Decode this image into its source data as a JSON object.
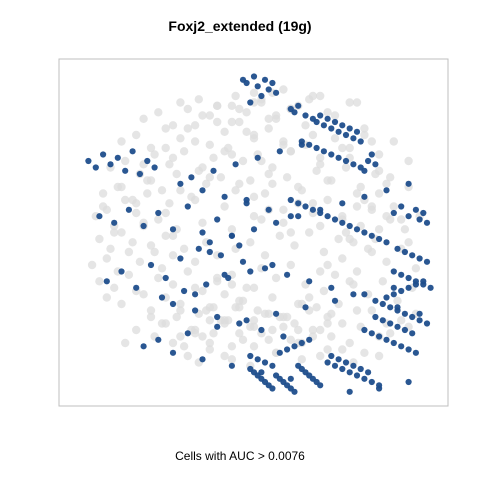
{
  "chart_data": {
    "type": "scatter",
    "title": "Foxj2_extended (19g)",
    "xlabel": "Cells with AUC > 0.0076",
    "ylabel": "",
    "xlim": [
      0,
      100
    ],
    "ylim": [
      0,
      100
    ],
    "grid": false,
    "legend": "none",
    "colors": {
      "background_cells": "#dcdcdc",
      "highlight_cells": "#1f4e8c"
    },
    "series": [
      {
        "role": "background",
        "x": [
          7,
          9,
          12,
          15,
          18,
          21,
          24,
          27,
          8,
          11,
          14,
          17,
          20,
          23,
          26,
          29,
          6,
          10,
          13,
          16,
          19,
          22,
          25,
          28,
          31,
          34,
          37,
          40,
          8,
          12,
          16,
          20,
          24,
          28,
          32,
          36,
          40,
          44,
          10,
          14,
          18,
          22,
          26,
          30,
          34,
          38,
          42,
          46,
          50,
          9,
          13,
          17,
          21,
          25,
          29,
          33,
          37,
          41,
          45,
          49,
          53,
          11,
          15,
          19,
          23,
          27,
          31,
          35,
          39,
          43,
          47,
          51,
          55,
          14,
          18,
          22,
          26,
          30,
          34,
          38,
          42,
          46,
          50,
          54,
          58,
          20,
          24,
          28,
          32,
          36,
          40,
          44,
          48,
          52,
          56,
          60,
          25,
          29,
          33,
          37,
          41,
          45,
          49,
          53,
          57,
          61,
          65,
          30,
          34,
          38,
          42,
          46,
          50,
          54,
          58,
          62,
          66,
          70,
          35,
          39,
          43,
          47,
          51,
          55,
          59,
          63,
          67,
          71,
          40,
          44,
          48,
          52,
          56,
          60,
          64,
          68,
          72,
          76,
          45,
          49,
          53,
          57,
          61,
          65,
          69,
          73,
          77,
          81,
          50,
          54,
          58,
          62,
          66,
          70,
          74,
          78,
          82,
          86,
          55,
          59,
          63,
          67,
          71,
          75,
          79,
          83,
          87,
          60,
          64,
          68,
          72,
          76,
          80,
          84,
          88,
          92,
          65,
          69,
          73,
          77,
          81,
          85,
          89,
          93,
          70,
          74,
          78,
          82,
          86,
          90,
          94,
          75,
          79,
          83,
          87,
          91,
          95,
          80,
          84,
          88,
          92,
          30,
          35,
          40,
          45,
          50,
          55,
          60,
          65,
          32,
          38,
          44,
          50,
          56,
          62,
          68,
          74,
          80,
          35,
          42,
          49,
          56,
          63,
          70,
          77,
          84,
          28,
          36,
          44,
          52,
          60,
          68,
          76,
          84,
          92,
          22,
          30,
          38,
          46,
          54,
          62,
          70,
          78,
          86,
          94,
          18,
          26,
          34,
          42,
          50,
          58,
          66,
          74,
          82,
          90,
          15,
          23,
          31,
          39,
          47,
          55,
          63,
          71,
          79,
          87,
          12,
          20,
          28,
          36,
          44,
          52,
          60,
          68,
          76,
          84,
          92,
          10,
          18,
          26,
          34,
          42,
          50,
          58,
          66,
          74,
          82,
          90,
          14,
          22,
          30,
          38,
          46,
          54,
          62,
          70,
          78,
          86,
          20,
          28,
          36,
          44,
          52,
          60,
          68,
          76,
          84,
          26,
          34,
          42,
          50,
          58,
          66,
          74,
          82,
          32,
          40,
          48,
          56,
          64,
          72,
          80,
          38,
          46,
          54,
          62,
          70,
          78,
          44,
          52,
          60,
          68,
          76,
          50,
          58,
          66
        ],
        "y": [
          55,
          58,
          52,
          60,
          56,
          62,
          54,
          59,
          48,
          45,
          50,
          47,
          53,
          44,
          49,
          51,
          40,
          42,
          38,
          44,
          41,
          46,
          39,
          43,
          45,
          41,
          47,
          43,
          35,
          33,
          37,
          31,
          36,
          34,
          38,
          32,
          36,
          34,
          30,
          28,
          32,
          26,
          30,
          28,
          33,
          27,
          31,
          29,
          33,
          62,
          64,
          60,
          66,
          63,
          68,
          61,
          65,
          67,
          63,
          66,
          62,
          70,
          72,
          68,
          74,
          71,
          75,
          69,
          73,
          76,
          72,
          74,
          70,
          78,
          80,
          76,
          82,
          79,
          83,
          77,
          81,
          84,
          80,
          82,
          78,
          85,
          87,
          83,
          88,
          86,
          89,
          84,
          87,
          90,
          86,
          88,
          22,
          24,
          20,
          26,
          23,
          27,
          21,
          25,
          24,
          22,
          26,
          18,
          20,
          16,
          22,
          19,
          23,
          17,
          21,
          20,
          18,
          22,
          25,
          27,
          23,
          29,
          26,
          30,
          24,
          28,
          27,
          25,
          35,
          37,
          33,
          39,
          36,
          40,
          34,
          38,
          37,
          35,
          45,
          47,
          43,
          49,
          46,
          50,
          44,
          48,
          47,
          45,
          55,
          57,
          53,
          59,
          56,
          60,
          54,
          58,
          57,
          55,
          65,
          67,
          63,
          69,
          66,
          70,
          64,
          68,
          67,
          75,
          77,
          73,
          79,
          76,
          80,
          74,
          78,
          72,
          30,
          32,
          28,
          34,
          31,
          35,
          29,
          33,
          40,
          42,
          38,
          44,
          41,
          45,
          39,
          50,
          52,
          48,
          54,
          51,
          55,
          60,
          62,
          58,
          64,
          90,
          91,
          89,
          92,
          90,
          93,
          88,
          91,
          12,
          14,
          11,
          15,
          13,
          16,
          12,
          14,
          13,
          10,
          12,
          9,
          13,
          11,
          14,
          10,
          12,
          16,
          18,
          15,
          19,
          17,
          20,
          16,
          18,
          21,
          24,
          26,
          23,
          27,
          25,
          28,
          24,
          26,
          22,
          25,
          20,
          22,
          19,
          23,
          21,
          24,
          20,
          22,
          26,
          23,
          16,
          18,
          15,
          19,
          17,
          20,
          16,
          18,
          21,
          19,
          50,
          52,
          49,
          53,
          51,
          54,
          50,
          52,
          48,
          51,
          47,
          57,
          59,
          56,
          60,
          58,
          61,
          57,
          59,
          55,
          58,
          54,
          64,
          66,
          63,
          67,
          65,
          68,
          64,
          66,
          62,
          65,
          71,
          73,
          70,
          74,
          72,
          75,
          71,
          73,
          69,
          76,
          78,
          75,
          79,
          77,
          80,
          76,
          78,
          82,
          84,
          81,
          85,
          83,
          86,
          82,
          86,
          88,
          85,
          89,
          87,
          90,
          89,
          91,
          88,
          92,
          90,
          93,
          94,
          92
        ]
      },
      {
        "role": "highlight",
        "name": "",
        "x": [
          47,
          48,
          50,
          51,
          53,
          54,
          55,
          56,
          52,
          49,
          60,
          61,
          62,
          64,
          66,
          67,
          68,
          69,
          70,
          71,
          72,
          73,
          74,
          75,
          76,
          77,
          78,
          79,
          63,
          65,
          67,
          69,
          71,
          73,
          75,
          77,
          79,
          80,
          81,
          82,
          83,
          60,
          62,
          64,
          66,
          68,
          70,
          72,
          74,
          76,
          78,
          80,
          82,
          84,
          86,
          88,
          90,
          92,
          94,
          95,
          96,
          97,
          89,
          91,
          93,
          95,
          97,
          88,
          90,
          92,
          94,
          96,
          98,
          85,
          87,
          89,
          91,
          93,
          95,
          97,
          86,
          88,
          90,
          92,
          94,
          96,
          80,
          82,
          84,
          86,
          88,
          90,
          92,
          94,
          83,
          85,
          87,
          89,
          91,
          93,
          70,
          72,
          74,
          76,
          78,
          80,
          82,
          84,
          71,
          73,
          75,
          77,
          79,
          81,
          49,
          50,
          51,
          52,
          53,
          54,
          55,
          56,
          57,
          58,
          59,
          60,
          61,
          62,
          63,
          64,
          65,
          66,
          67,
          49,
          51,
          53,
          55,
          57,
          59,
          61,
          63,
          65,
          5,
          7,
          9,
          11,
          13,
          15,
          17,
          19,
          21,
          23,
          8,
          12,
          16,
          20,
          24,
          28,
          32,
          36,
          40,
          44,
          48,
          10,
          14,
          18,
          22,
          26,
          30,
          34,
          38,
          42,
          46,
          25,
          28,
          31,
          34,
          37,
          40,
          43,
          46,
          49,
          52,
          55,
          58,
          30,
          33,
          36,
          39,
          42,
          45,
          48,
          51,
          54,
          57,
          60,
          63,
          35,
          38,
          41,
          44,
          47,
          50,
          53,
          56,
          59,
          62,
          65,
          68,
          71,
          74,
          77,
          80,
          83,
          86,
          89,
          92,
          95,
          20,
          24,
          28,
          32,
          36,
          40,
          44,
          48,
          52,
          56,
          60,
          64,
          68,
          72,
          76,
          80,
          84,
          88,
          92
        ],
        "y": [
          97,
          96,
          98,
          95,
          97,
          94,
          96,
          93,
          92,
          90,
          88,
          87,
          89,
          86,
          85,
          84,
          86,
          83,
          85,
          82,
          84,
          81,
          83,
          80,
          82,
          79,
          81,
          78,
          78,
          77,
          76,
          75,
          74,
          73,
          72,
          71,
          70,
          69,
          72,
          74,
          71,
          60,
          59,
          58,
          57,
          56,
          55,
          54,
          53,
          52,
          51,
          50,
          49,
          48,
          47,
          56,
          58,
          55,
          57,
          54,
          56,
          53,
          45,
          44,
          43,
          42,
          41,
          38,
          37,
          36,
          35,
          34,
          33,
          28,
          27,
          26,
          25,
          24,
          23,
          22,
          30,
          31,
          32,
          33,
          34,
          35,
          20,
          19,
          18,
          17,
          16,
          15,
          14,
          13,
          24,
          23,
          22,
          21,
          20,
          19,
          10,
          9,
          8,
          7,
          6,
          5,
          4,
          3,
          12,
          11,
          10,
          9,
          8,
          7,
          8,
          7,
          6,
          5,
          4,
          3,
          2,
          6,
          5,
          4,
          3,
          2,
          1,
          9,
          8,
          7,
          6,
          5,
          4,
          12,
          11,
          10,
          9,
          13,
          14,
          15,
          16,
          17,
          72,
          70,
          74,
          71,
          73,
          69,
          75,
          68,
          72,
          70,
          55,
          53,
          57,
          52,
          56,
          51,
          58,
          50,
          54,
          49,
          60,
          35,
          38,
          33,
          40,
          36,
          42,
          31,
          44,
          37,
          46,
          30,
          28,
          32,
          26,
          34,
          24,
          36,
          22,
          38,
          20,
          40,
          18,
          65,
          67,
          63,
          69,
          61,
          71,
          59,
          73,
          57,
          75,
          55,
          77,
          45,
          47,
          43,
          49,
          41,
          51,
          39,
          53,
          37,
          55,
          35,
          57,
          33,
          59,
          31,
          61,
          29,
          63,
          27,
          65,
          25,
          15,
          17,
          13,
          19,
          11,
          21,
          9,
          23,
          7,
          25,
          5,
          27,
          3,
          29,
          1,
          31,
          2,
          33,
          4
        ]
      }
    ]
  }
}
